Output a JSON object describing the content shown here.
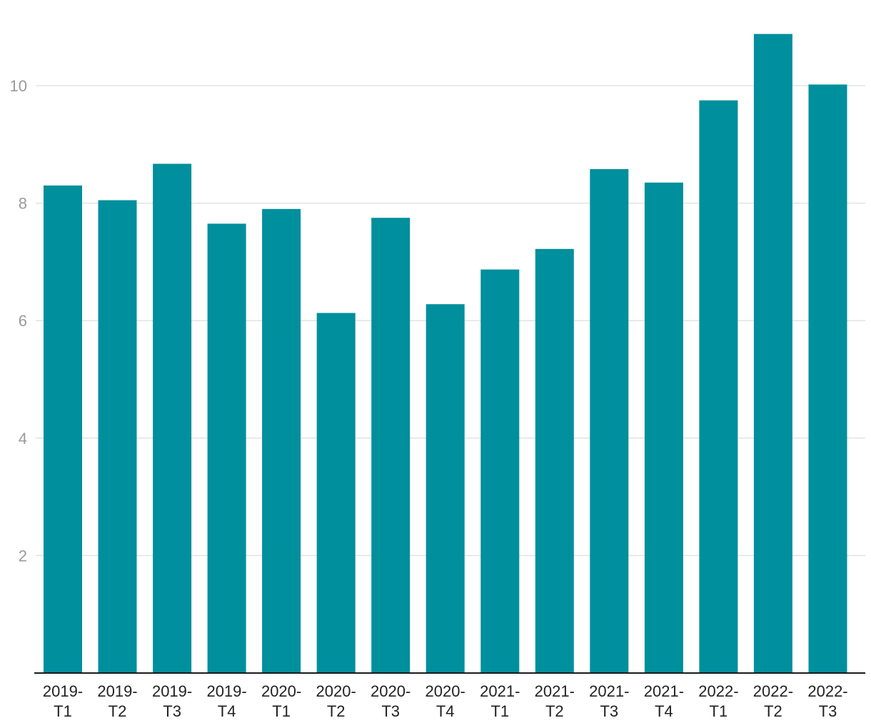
{
  "chart_data": {
    "type": "bar",
    "categories": [
      "2019-T1",
      "2019-T2",
      "2019-T3",
      "2019-T4",
      "2020-T1",
      "2020-T2",
      "2020-T3",
      "2020-T4",
      "2021-T1",
      "2021-T2",
      "2021-T3",
      "2021-T4",
      "2022-T1",
      "2022-T2",
      "2022-T3"
    ],
    "category_lines": [
      [
        "2019-",
        "T1"
      ],
      [
        "2019-",
        "T2"
      ],
      [
        "2019-",
        "T3"
      ],
      [
        "2019-",
        "T4"
      ],
      [
        "2020-",
        "T1"
      ],
      [
        "2020-",
        "T2"
      ],
      [
        "2020-",
        "T3"
      ],
      [
        "2020-",
        "T4"
      ],
      [
        "2021-",
        "T1"
      ],
      [
        "2021-",
        "T2"
      ],
      [
        "2021-",
        "T3"
      ],
      [
        "2021-",
        "T4"
      ],
      [
        "2022-",
        "T1"
      ],
      [
        "2022-",
        "T2"
      ],
      [
        "2022-",
        "T3"
      ]
    ],
    "values": [
      8.3,
      8.05,
      8.67,
      7.65,
      7.9,
      6.13,
      7.75,
      6.28,
      6.87,
      7.22,
      8.58,
      8.35,
      9.75,
      10.88,
      10.02
    ],
    "yticks": [
      2,
      4,
      6,
      8,
      10
    ],
    "ylim": [
      0,
      11.4
    ],
    "title": "",
    "xlabel": "",
    "ylabel": "",
    "grid": true,
    "legend": "none",
    "bar_color": "#008f9c"
  }
}
